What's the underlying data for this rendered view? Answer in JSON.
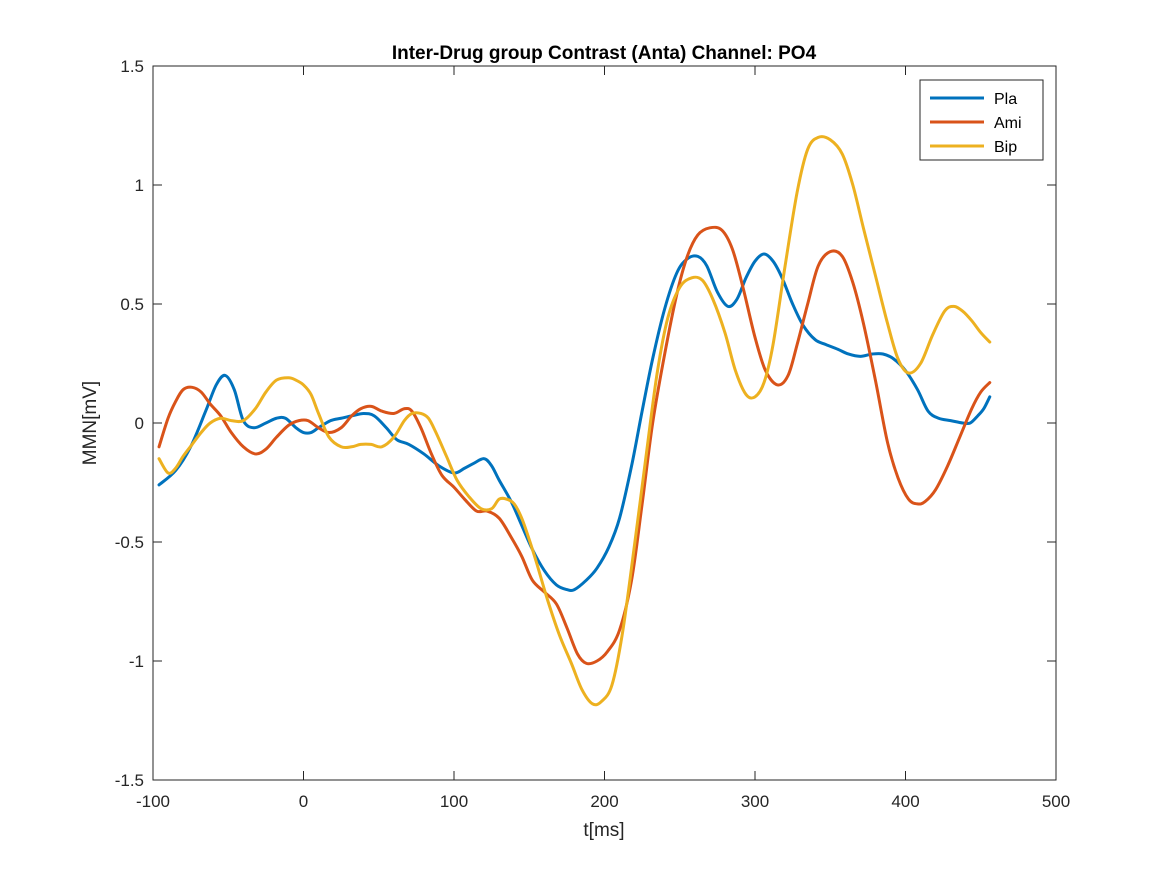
{
  "chart_data": {
    "type": "line",
    "title": "Inter-Drug group Contrast (Anta) Channel: PO4",
    "xlabel": "t[ms]",
    "ylabel": "MMN[mV]",
    "xlim": [
      -100,
      500
    ],
    "ylim": [
      -1.5,
      1.5
    ],
    "xticks": [
      -100,
      0,
      100,
      200,
      300,
      400,
      500
    ],
    "yticks": [
      -1.5,
      -1,
      -0.5,
      0,
      0.5,
      1,
      1.5
    ],
    "xtick_labels": [
      "-100",
      "0",
      "100",
      "200",
      "300",
      "400",
      "500"
    ],
    "ytick_labels": [
      "-1.5",
      "-1",
      "-0.5",
      "0",
      "0.5",
      "1",
      "1.5"
    ],
    "grid": false,
    "legend_position": "top-right",
    "series": [
      {
        "name": "Pla",
        "color": "#0072BD",
        "x": [
          -96,
          -85,
          -75,
          -65,
          -58,
          -52,
          -46,
          -40,
          -33,
          -25,
          -18,
          -12,
          -5,
          0,
          5,
          10,
          18,
          25,
          32,
          40,
          47,
          55,
          62,
          70,
          80,
          90,
          100,
          107,
          113,
          120,
          125,
          130,
          138,
          145,
          152,
          160,
          168,
          175,
          180,
          188,
          195,
          203,
          210,
          218,
          225,
          232,
          240,
          248,
          255,
          262,
          268,
          275,
          282,
          288,
          294,
          300,
          306,
          312,
          318,
          325,
          332,
          340,
          347,
          355,
          362,
          370,
          378,
          385,
          392,
          400,
          408,
          415,
          422,
          430,
          438,
          443,
          448,
          452,
          456
        ],
        "y": [
          -0.26,
          -0.2,
          -0.1,
          0.05,
          0.16,
          0.2,
          0.14,
          0.01,
          -0.02,
          0.0,
          0.02,
          0.02,
          -0.02,
          -0.04,
          -0.04,
          -0.02,
          0.01,
          0.02,
          0.03,
          0.04,
          0.03,
          -0.02,
          -0.07,
          -0.09,
          -0.13,
          -0.18,
          -0.21,
          -0.19,
          -0.17,
          -0.15,
          -0.18,
          -0.24,
          -0.33,
          -0.43,
          -0.53,
          -0.62,
          -0.68,
          -0.7,
          -0.7,
          -0.66,
          -0.61,
          -0.52,
          -0.4,
          -0.18,
          0.05,
          0.27,
          0.48,
          0.63,
          0.69,
          0.7,
          0.66,
          0.55,
          0.49,
          0.52,
          0.61,
          0.68,
          0.71,
          0.68,
          0.61,
          0.5,
          0.41,
          0.35,
          0.33,
          0.31,
          0.29,
          0.28,
          0.29,
          0.29,
          0.27,
          0.22,
          0.14,
          0.05,
          0.02,
          0.01,
          0.0,
          0.0,
          0.03,
          0.06,
          0.11
        ]
      },
      {
        "name": "Ami",
        "color": "#D95319",
        "x": [
          -96,
          -90,
          -85,
          -80,
          -74,
          -68,
          -62,
          -55,
          -48,
          -40,
          -32,
          -25,
          -18,
          -10,
          -3,
          3,
          10,
          17,
          25,
          32,
          38,
          45,
          52,
          60,
          67,
          72,
          78,
          85,
          92,
          100,
          107,
          115,
          122,
          130,
          138,
          145,
          152,
          160,
          168,
          175,
          182,
          188,
          195,
          202,
          210,
          218,
          225,
          232,
          240,
          248,
          255,
          262,
          270,
          278,
          285,
          292,
          300,
          307,
          315,
          322,
          328,
          335,
          342,
          350,
          358,
          365,
          372,
          380,
          388,
          395,
          402,
          408,
          413,
          420,
          428,
          436,
          444,
          450,
          456
        ],
        "y": [
          -0.1,
          0.02,
          0.09,
          0.14,
          0.15,
          0.13,
          0.08,
          0.03,
          -0.04,
          -0.1,
          -0.13,
          -0.11,
          -0.06,
          -0.01,
          0.01,
          0.01,
          -0.02,
          -0.04,
          -0.02,
          0.03,
          0.06,
          0.07,
          0.05,
          0.04,
          0.06,
          0.05,
          -0.02,
          -0.13,
          -0.22,
          -0.27,
          -0.32,
          -0.37,
          -0.37,
          -0.4,
          -0.48,
          -0.56,
          -0.66,
          -0.71,
          -0.76,
          -0.86,
          -0.97,
          -1.01,
          -1.0,
          -0.96,
          -0.87,
          -0.66,
          -0.34,
          0.0,
          0.29,
          0.54,
          0.7,
          0.79,
          0.82,
          0.81,
          0.73,
          0.57,
          0.36,
          0.22,
          0.16,
          0.2,
          0.33,
          0.5,
          0.66,
          0.72,
          0.7,
          0.59,
          0.42,
          0.18,
          -0.08,
          -0.23,
          -0.32,
          -0.34,
          -0.33,
          -0.28,
          -0.18,
          -0.06,
          0.06,
          0.13,
          0.17
        ]
      },
      {
        "name": "Bip",
        "color": "#EDB120",
        "x": [
          -96,
          -90,
          -85,
          -80,
          -74,
          -68,
          -62,
          -55,
          -48,
          -40,
          -32,
          -25,
          -18,
          -10,
          -5,
          0,
          5,
          10,
          17,
          25,
          32,
          38,
          45,
          52,
          60,
          67,
          72,
          78,
          83,
          88,
          95,
          102,
          110,
          118,
          125,
          130,
          135,
          140,
          145,
          150,
          155,
          162,
          170,
          178,
          185,
          192,
          198,
          205,
          212,
          220,
          228,
          235,
          242,
          250,
          258,
          265,
          272,
          280,
          287,
          294,
          300,
          306,
          312,
          320,
          328,
          335,
          342,
          350,
          358,
          365,
          372,
          380,
          388,
          395,
          402,
          410,
          418,
          426,
          432,
          438,
          444,
          450,
          456
        ],
        "y": [
          -0.15,
          -0.21,
          -0.19,
          -0.14,
          -0.09,
          -0.04,
          0.0,
          0.02,
          0.01,
          0.01,
          0.06,
          0.13,
          0.18,
          0.19,
          0.18,
          0.16,
          0.12,
          0.04,
          -0.06,
          -0.1,
          -0.1,
          -0.09,
          -0.09,
          -0.1,
          -0.06,
          0.01,
          0.04,
          0.04,
          0.02,
          -0.04,
          -0.14,
          -0.24,
          -0.31,
          -0.36,
          -0.36,
          -0.32,
          -0.32,
          -0.34,
          -0.4,
          -0.49,
          -0.59,
          -0.74,
          -0.89,
          -1.01,
          -1.12,
          -1.18,
          -1.17,
          -1.1,
          -0.88,
          -0.51,
          -0.12,
          0.21,
          0.44,
          0.57,
          0.61,
          0.6,
          0.52,
          0.38,
          0.22,
          0.12,
          0.11,
          0.17,
          0.33,
          0.66,
          0.97,
          1.15,
          1.2,
          1.19,
          1.13,
          1.0,
          0.82,
          0.62,
          0.42,
          0.27,
          0.21,
          0.25,
          0.37,
          0.47,
          0.49,
          0.47,
          0.43,
          0.38,
          0.34
        ]
      }
    ]
  }
}
